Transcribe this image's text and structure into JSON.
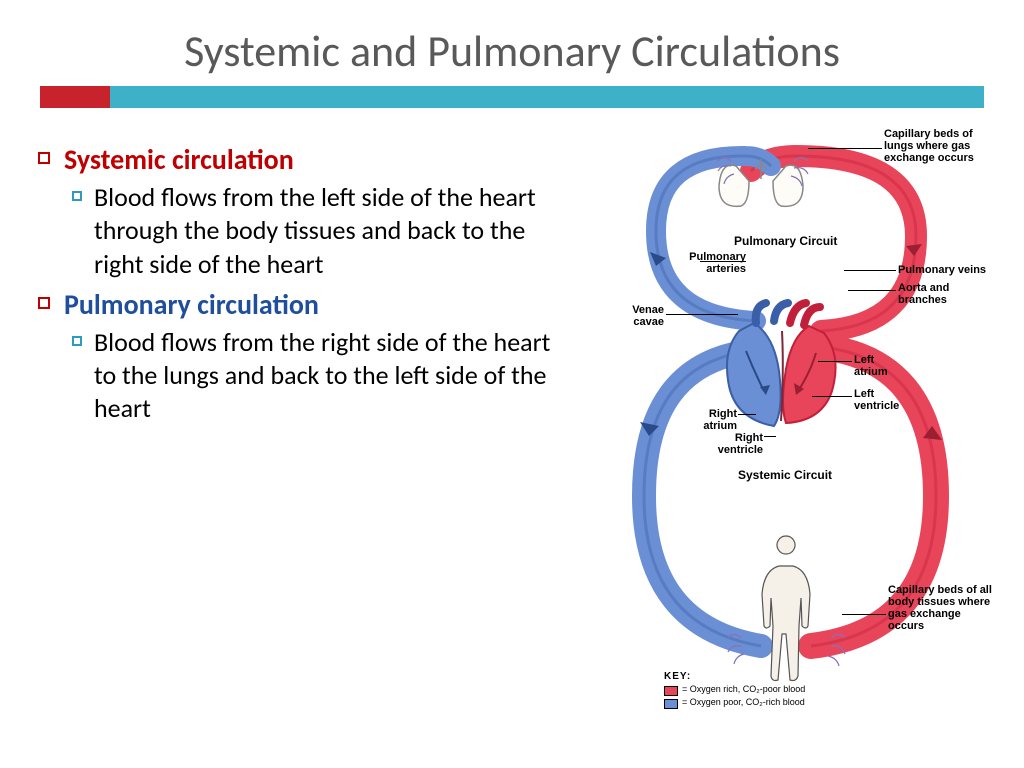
{
  "slide": {
    "title": "Systemic and Pulmonary Circulations",
    "accent_red": "#c8232c",
    "accent_teal": "#3eb1c8",
    "title_color": "#595959"
  },
  "bullets": [
    {
      "label": "Systemic circulation",
      "color": "#c00000",
      "marker_color": "#c00000",
      "sub": {
        "text": "Blood flows from the left side of the heart through the body tissues and back to the right side of the heart",
        "marker_color": "#2e9bbd"
      }
    },
    {
      "label": "Pulmonary circulation",
      "color": "#1f4e9c",
      "marker_color": "#c00000",
      "sub": {
        "text": "Blood flows from the right side of the heart to the lungs and back to the left side of the heart",
        "marker_color": "#2e9bbd"
      }
    }
  ],
  "diagram": {
    "colors": {
      "oxygen_rich": "#e8455a",
      "oxygen_rich_dark": "#c21f3a",
      "oxygen_poor": "#6b8fd4",
      "oxygen_poor_dark": "#3a5fa8",
      "capillary_purple": "#8a6fb8",
      "outline": "#2a2a2a",
      "body_fill": "#f5f0e8"
    },
    "circuit_labels": {
      "pulmonary": "Pulmonary Circuit",
      "systemic": "Systemic Circuit"
    },
    "labels": {
      "cap_lungs": "Capillary beds of lungs where gas exchange occurs",
      "pulm_arteries": "Pulmonary arteries",
      "pulm_veins": "Pulmonary veins",
      "aorta": "Aorta and branches",
      "venae_cavae": "Venae cavae",
      "left_atrium": "Left atrium",
      "left_ventricle": "Left ventricle",
      "right_atrium": "Right atrium",
      "right_ventricle": "Right ventricle",
      "cap_body": "Capillary beds of all body tissues where gas exchange occurs"
    },
    "key": {
      "title": "KEY:",
      "rich": "= Oxygen rich, CO₂-poor blood",
      "poor": "= Oxygen poor, CO₂-rich blood"
    }
  }
}
